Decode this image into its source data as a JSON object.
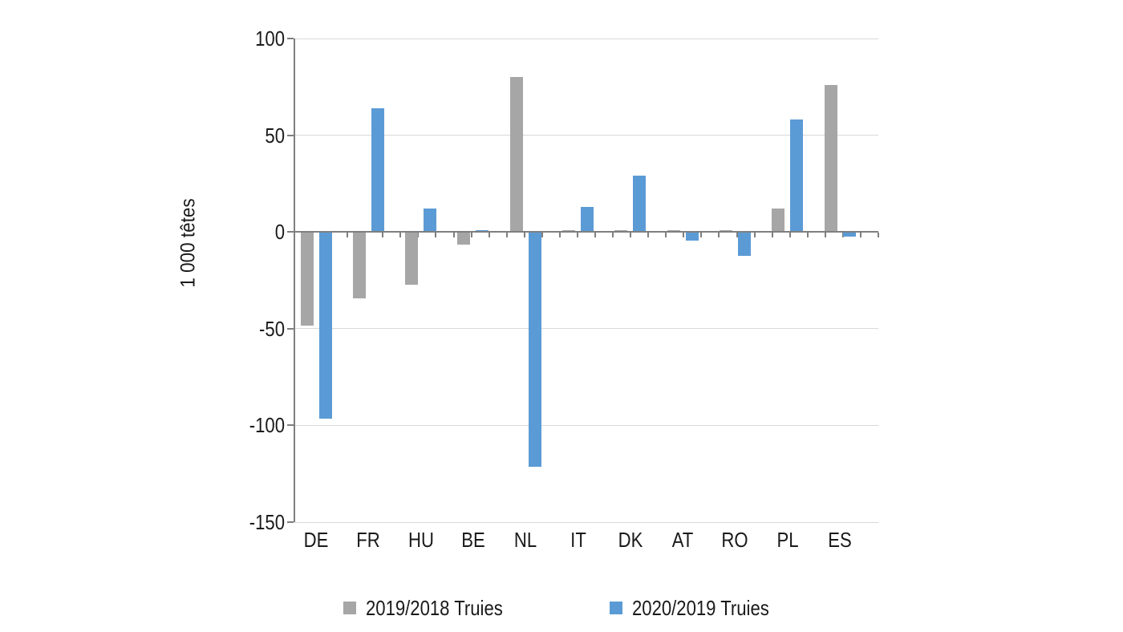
{
  "chart_data": {
    "type": "bar",
    "ylabel": "1 000 têtes",
    "categories": [
      "DE",
      "FR",
      "HU",
      "BE",
      "NL",
      "IT",
      "DK",
      "AT",
      "RO",
      "PL",
      "ES"
    ],
    "series": [
      {
        "name": "2019/2018 Truies",
        "color": "#A6A6A6",
        "values": [
          -48,
          -34,
          -27,
          -6,
          80,
          1,
          1,
          1,
          1,
          12,
          76
        ]
      },
      {
        "name": "2020/2019 Truies",
        "color": "#5B9BD5",
        "values": [
          -96,
          64,
          12,
          1,
          -121,
          13,
          29,
          -4,
          -12,
          58,
          -2
        ]
      }
    ],
    "ylim": [
      -150,
      100
    ],
    "yticks": [
      100,
      50,
      0,
      -50,
      -100,
      -150
    ],
    "grid": true,
    "legend_position": "bottom",
    "colors": {
      "axis": "#7F7F7F",
      "gridline": "#D9D9D9",
      "text": "#1A1A1A",
      "background": "#FFFFFF"
    }
  }
}
